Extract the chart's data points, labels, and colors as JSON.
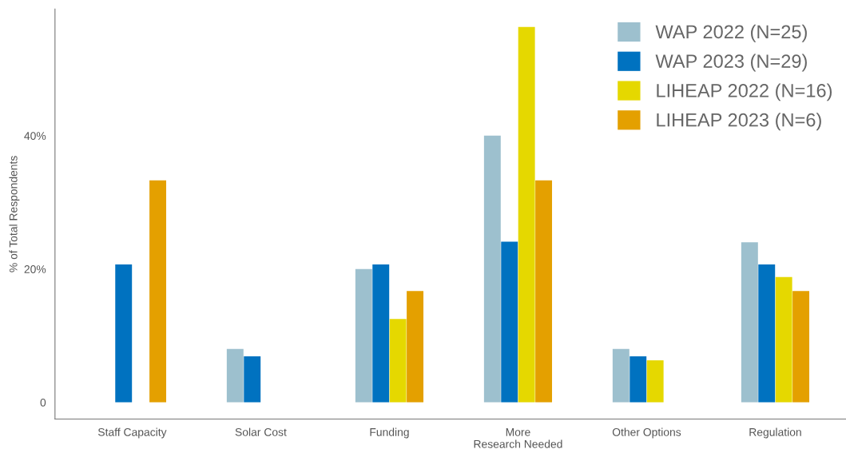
{
  "chart_data": {
    "type": "bar",
    "ylabel": "% of Total Respondents",
    "categories": [
      "Staff Capacity",
      "Solar Cost",
      "Funding",
      "More\nResearch Needed",
      "Other Options",
      "Regulation"
    ],
    "series": [
      {
        "name": "WAP 2022 (N=25)",
        "color": "#9dc0ce",
        "values": [
          0,
          8,
          20,
          40,
          8,
          24
        ]
      },
      {
        "name": "WAP 2023 (N=29)",
        "color": "#0072c0",
        "values": [
          20.7,
          6.9,
          20.7,
          24.1,
          6.9,
          20.7
        ]
      },
      {
        "name": "LIHEAP 2022 (N=16)",
        "color": "#e5d800",
        "values": [
          0,
          0,
          12.5,
          56.3,
          6.3,
          18.8
        ]
      },
      {
        "name": "LIHEAP 2023 (N=6)",
        "color": "#e4a000",
        "values": [
          33.3,
          0,
          16.7,
          33.3,
          0,
          16.7
        ]
      }
    ],
    "ylim": [
      -2.5,
      59
    ],
    "yticks": [
      0,
      {
        "value": 20,
        "label": "20%"
      },
      {
        "value": 40,
        "label": "40%"
      }
    ],
    "grid": false,
    "legend": "top right"
  }
}
